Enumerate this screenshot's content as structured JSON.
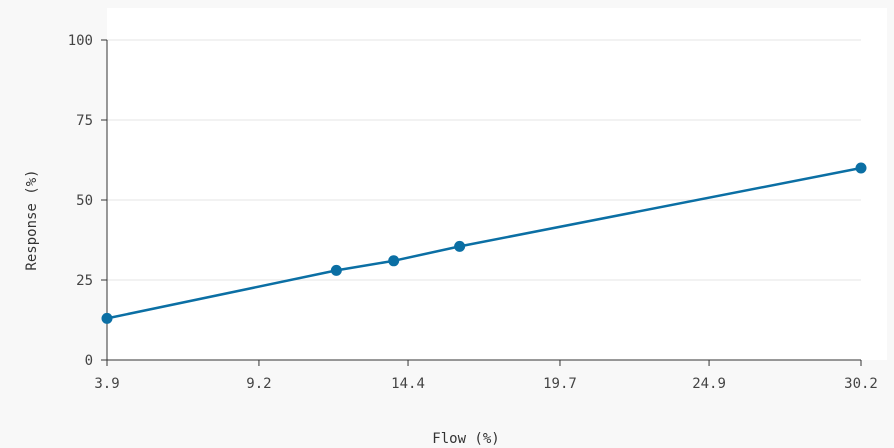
{
  "chart_data": {
    "type": "line",
    "title": "",
    "xlabel": "Flow (%)",
    "ylabel": "Response (%)",
    "xlim": [
      3.9,
      30.2
    ],
    "ylim": [
      0,
      100
    ],
    "x_ticks": [
      "3.9",
      "9.2",
      "14.4",
      "19.7",
      "24.9",
      "30.2"
    ],
    "y_ticks": [
      "0",
      "25",
      "50",
      "75",
      "100"
    ],
    "grid": "horizontal",
    "series": [
      {
        "color": "#0b6fa4",
        "x": [
          3.9,
          11.9,
          13.9,
          16.2,
          30.2
        ],
        "y": [
          13,
          28,
          31,
          35.5,
          60
        ]
      }
    ]
  }
}
